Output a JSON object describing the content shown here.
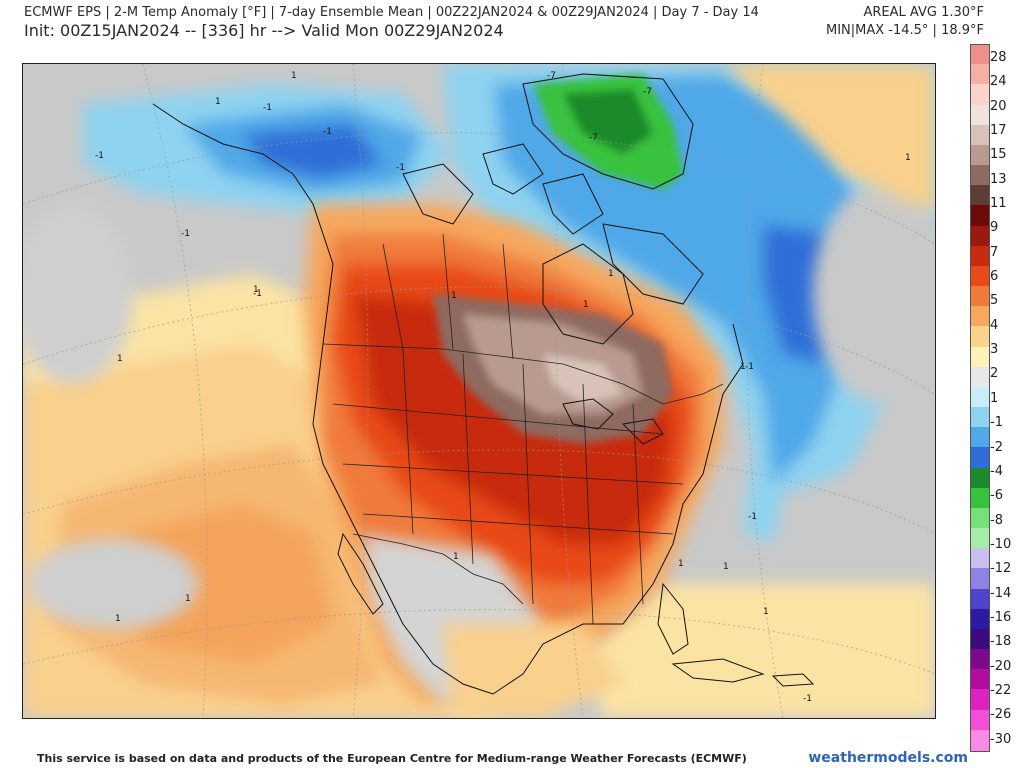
{
  "header": {
    "line1": "ECMWF EPS | 2-M Temp Anomaly [°F] | 7-day Ensemble Mean | 00Z22JAN2024 & 00Z29JAN2024 | Day 7 - Day 14",
    "line2": "Init: 00Z15JAN2024 -- [336] hr --> Valid Mon 00Z29JAN2024",
    "areal_avg": "AREAL AVG 1.30°F",
    "min_max": "MIN|MAX -14.5° | 18.9°F"
  },
  "legend": {
    "labels": [
      "28",
      "24",
      "20",
      "17",
      "15",
      "13",
      "11",
      "9",
      "7",
      "6",
      "5",
      "4",
      "3",
      "2",
      "1",
      "-1",
      "-2",
      "-4",
      "-6",
      "-8",
      "-10",
      "-12",
      "-14",
      "-16",
      "-18",
      "-20",
      "-22",
      "-26",
      "-30"
    ],
    "colors": [
      "#ef8f8c",
      "#f5b0a6",
      "#fad4cb",
      "#efe3dc",
      "#d9c3b8",
      "#b89a8e",
      "#8e6b60",
      "#5e3d35",
      "#6d0a0a",
      "#9b1a10",
      "#c82b10",
      "#e84a18",
      "#f07a3a",
      "#f6a85e",
      "#fbd18c",
      "#fdf3b9",
      "#e8e8e8",
      "#c7edf7",
      "#8ed3f0",
      "#50a8e8",
      "#2f6ed8",
      "#1a8a2a",
      "#38c23c",
      "#78e07a",
      "#a6eba8",
      "#c9c0ee",
      "#8c83e2",
      "#4f44cc",
      "#2b1aa2",
      "#3c0a7e",
      "#7c0a8e",
      "#b20ca0",
      "#de22c0",
      "#f24fd4",
      "#f98ae6"
    ]
  },
  "contour_labels": [
    "-1",
    "-1",
    "-1",
    "-1",
    "-1",
    "-1",
    "-1",
    "-7",
    "-7",
    "-7",
    "-1",
    "-1",
    "1",
    "1",
    "1",
    "1",
    "1",
    "1",
    "1",
    "1",
    "1",
    "1",
    "1",
    "1",
    "1",
    "1",
    "1"
  ],
  "footer": {
    "credit": "This service is based on data and products of the European Centre for Medium-range Weather Forecasts (ECMWF)",
    "brand": "weathermodels.com"
  }
}
